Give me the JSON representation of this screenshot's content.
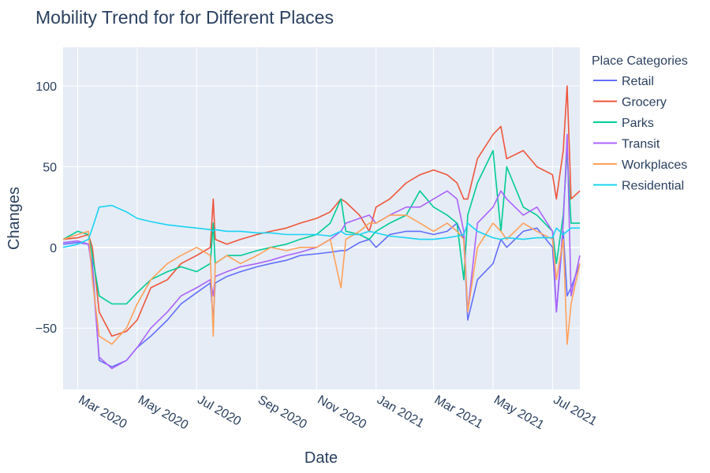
{
  "chart_data": {
    "type": "line",
    "title": "Mobility Trend for for Different Places",
    "xlabel": "Date",
    "ylabel": "Changes",
    "legend_title": "Place Categories",
    "legend_position": "right",
    "grid": true,
    "x_range": [
      "2020-02-15",
      "2021-07-29"
    ],
    "ylim": [
      -88,
      124
    ],
    "y_ticks": [
      -50,
      0,
      50,
      100
    ],
    "y_tick_labels": [
      "−50",
      "0",
      "50",
      "100"
    ],
    "x_ticks": [
      "2020-03-01",
      "2020-05-01",
      "2020-07-01",
      "2020-09-01",
      "2020-11-01",
      "2021-01-01",
      "2021-03-01",
      "2021-05-01",
      "2021-07-01"
    ],
    "x_tick_labels": [
      "Mar 2020",
      "May 2020",
      "Jul 2020",
      "Sep 2020",
      "Nov 2020",
      "Jan 2021",
      "Mar 2021",
      "May 2021",
      "Jul 2021"
    ],
    "x": [
      "2020-02-15",
      "2020-03-01",
      "2020-03-12",
      "2020-03-16",
      "2020-03-23",
      "2020-04-05",
      "2020-04-20",
      "2020-05-01",
      "2020-05-15",
      "2020-06-01",
      "2020-06-15",
      "2020-07-01",
      "2020-07-15",
      "2020-07-18",
      "2020-07-20",
      "2020-08-01",
      "2020-08-15",
      "2020-09-01",
      "2020-09-15",
      "2020-10-01",
      "2020-10-15",
      "2020-11-01",
      "2020-11-15",
      "2020-11-26",
      "2020-12-01",
      "2020-12-15",
      "2020-12-25",
      "2021-01-01",
      "2021-01-15",
      "2021-02-01",
      "2021-02-15",
      "2021-03-01",
      "2021-03-15",
      "2021-03-25",
      "2021-04-01",
      "2021-04-05",
      "2021-04-15",
      "2021-05-01",
      "2021-05-09",
      "2021-05-15",
      "2021-06-01",
      "2021-06-15",
      "2021-07-01",
      "2021-07-05",
      "2021-07-12",
      "2021-07-16",
      "2021-07-20",
      "2021-07-29"
    ],
    "series": [
      {
        "name": "Retail",
        "color": "#636efa",
        "values": [
          2,
          3,
          2,
          -10,
          -70,
          -74,
          -70,
          -62,
          -55,
          -45,
          -35,
          -28,
          -22,
          -45,
          -22,
          -18,
          -15,
          -12,
          -10,
          -8,
          -5,
          -4,
          -3,
          -2,
          -2,
          3,
          5,
          0,
          8,
          10,
          10,
          8,
          10,
          15,
          5,
          -45,
          -20,
          -10,
          5,
          0,
          10,
          12,
          0,
          -40,
          10,
          -30,
          -25,
          -10
        ]
      },
      {
        "name": "Grocery",
        "color": "#ef553b",
        "values": [
          5,
          6,
          8,
          0,
          -40,
          -55,
          -52,
          -45,
          -25,
          -20,
          -10,
          -5,
          0,
          30,
          5,
          2,
          5,
          8,
          10,
          12,
          15,
          18,
          22,
          30,
          28,
          20,
          10,
          25,
          30,
          40,
          45,
          48,
          45,
          40,
          30,
          30,
          55,
          70,
          75,
          55,
          60,
          50,
          45,
          30,
          60,
          100,
          30,
          35
        ]
      },
      {
        "name": "Parks",
        "color": "#00cc96",
        "values": [
          5,
          10,
          8,
          -5,
          -30,
          -35,
          -35,
          -28,
          -20,
          -15,
          -12,
          -15,
          -10,
          15,
          -10,
          -5,
          -5,
          -2,
          0,
          2,
          5,
          8,
          15,
          30,
          10,
          8,
          5,
          10,
          15,
          20,
          35,
          25,
          20,
          15,
          -20,
          20,
          40,
          60,
          10,
          50,
          25,
          20,
          10,
          -10,
          20,
          60,
          15,
          15
        ]
      },
      {
        "name": "Transit",
        "color": "#ab63fa",
        "values": [
          3,
          4,
          2,
          -15,
          -68,
          -75,
          -70,
          -62,
          -50,
          -40,
          -30,
          -25,
          -20,
          -30,
          -18,
          -15,
          -12,
          -10,
          -8,
          -5,
          -3,
          0,
          5,
          10,
          15,
          18,
          20,
          15,
          20,
          25,
          25,
          30,
          35,
          30,
          10,
          -40,
          15,
          25,
          35,
          30,
          20,
          25,
          10,
          -40,
          15,
          70,
          -30,
          -5
        ]
      },
      {
        "name": "Workplaces",
        "color": "#ffa15a",
        "values": [
          5,
          8,
          10,
          -20,
          -55,
          -60,
          -50,
          -35,
          -20,
          -10,
          -5,
          0,
          -5,
          -55,
          -10,
          -5,
          -10,
          -5,
          0,
          -2,
          0,
          0,
          5,
          -25,
          5,
          10,
          15,
          15,
          20,
          20,
          15,
          10,
          15,
          10,
          5,
          -40,
          0,
          15,
          10,
          5,
          15,
          10,
          5,
          -20,
          5,
          -60,
          -35,
          -10
        ]
      },
      {
        "name": "Residential",
        "color": "#19d3f3",
        "values": [
          0,
          2,
          5,
          12,
          25,
          26,
          22,
          18,
          16,
          14,
          13,
          12,
          11,
          10,
          11,
          10,
          10,
          9,
          9,
          8,
          8,
          8,
          7,
          10,
          8,
          8,
          10,
          9,
          7,
          6,
          5,
          5,
          6,
          7,
          8,
          15,
          10,
          6,
          5,
          6,
          5,
          6,
          6,
          12,
          8,
          10,
          12,
          12
        ]
      }
    ]
  }
}
